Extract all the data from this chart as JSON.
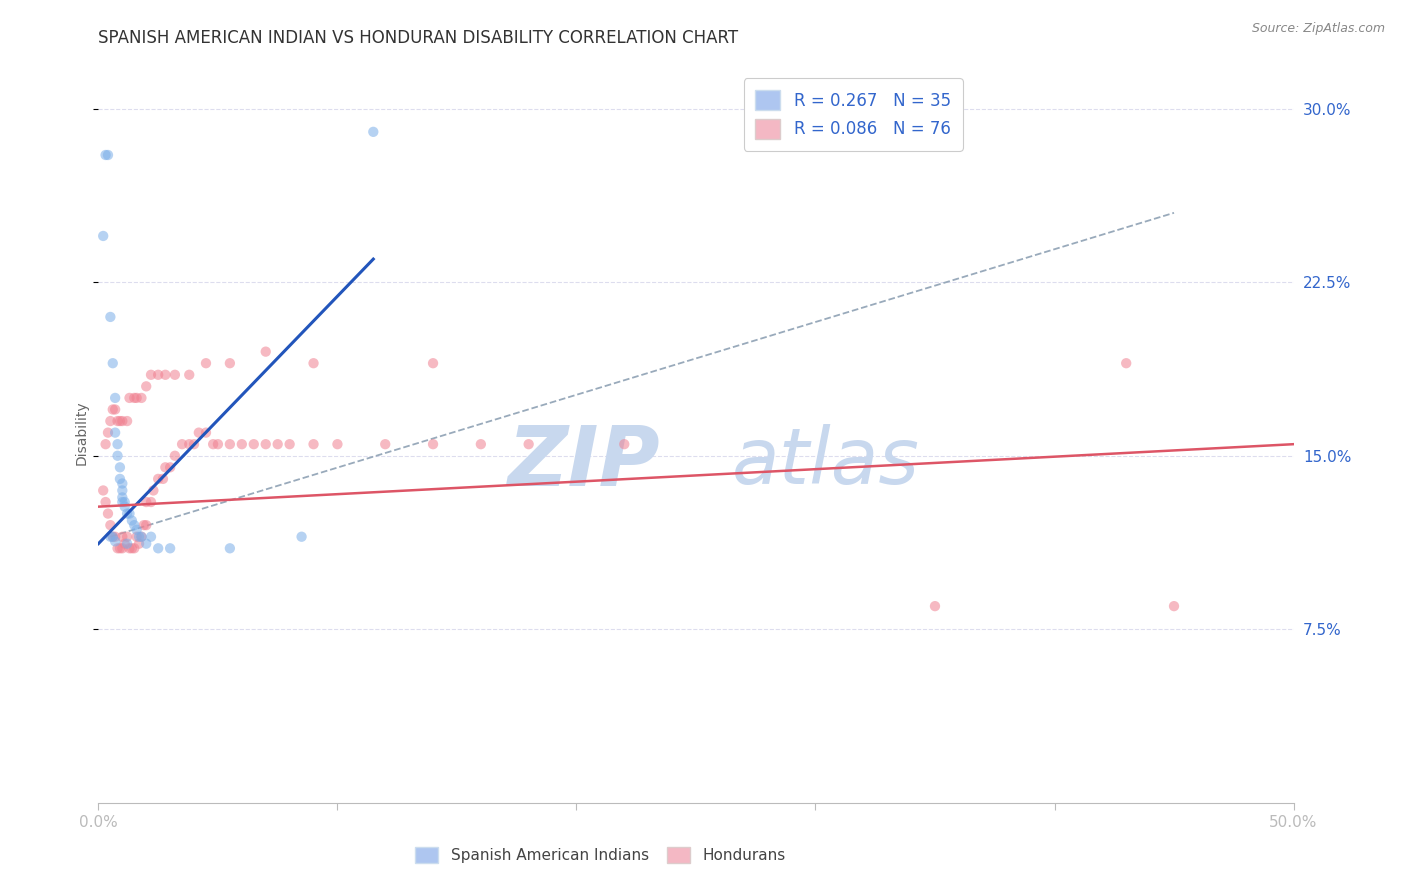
{
  "title": "SPANISH AMERICAN INDIAN VS HONDURAN DISABILITY CORRELATION CHART",
  "source": "Source: ZipAtlas.com",
  "ylabel": "Disability",
  "yticks": [
    0.075,
    0.15,
    0.225,
    0.3
  ],
  "ytick_labels": [
    "7.5%",
    "15.0%",
    "22.5%",
    "30.0%"
  ],
  "xlim": [
    0.0,
    0.5
  ],
  "ylim": [
    0.0,
    0.32
  ],
  "blue_scatter_x": [
    0.002,
    0.003,
    0.004,
    0.005,
    0.006,
    0.007,
    0.007,
    0.008,
    0.008,
    0.009,
    0.009,
    0.01,
    0.01,
    0.01,
    0.01,
    0.011,
    0.011,
    0.012,
    0.013,
    0.014,
    0.015,
    0.016,
    0.017,
    0.018,
    0.02,
    0.022,
    0.025,
    0.03,
    0.055,
    0.085,
    0.005,
    0.006,
    0.007,
    0.012,
    0.115
  ],
  "blue_scatter_y": [
    0.245,
    0.28,
    0.28,
    0.21,
    0.19,
    0.175,
    0.16,
    0.155,
    0.15,
    0.145,
    0.14,
    0.138,
    0.135,
    0.132,
    0.13,
    0.13,
    0.128,
    0.125,
    0.125,
    0.122,
    0.12,
    0.118,
    0.115,
    0.115,
    0.112,
    0.115,
    0.11,
    0.11,
    0.11,
    0.115,
    0.115,
    0.115,
    0.113,
    0.112,
    0.29
  ],
  "pink_scatter_x": [
    0.002,
    0.003,
    0.004,
    0.005,
    0.006,
    0.007,
    0.008,
    0.009,
    0.01,
    0.01,
    0.011,
    0.012,
    0.013,
    0.014,
    0.015,
    0.016,
    0.017,
    0.018,
    0.019,
    0.02,
    0.02,
    0.022,
    0.023,
    0.025,
    0.027,
    0.028,
    0.03,
    0.032,
    0.035,
    0.038,
    0.04,
    0.042,
    0.045,
    0.048,
    0.05,
    0.055,
    0.06,
    0.065,
    0.07,
    0.075,
    0.08,
    0.09,
    0.1,
    0.12,
    0.14,
    0.16,
    0.18,
    0.22,
    0.003,
    0.004,
    0.005,
    0.006,
    0.007,
    0.008,
    0.009,
    0.01,
    0.012,
    0.013,
    0.015,
    0.016,
    0.018,
    0.02,
    0.022,
    0.025,
    0.028,
    0.032,
    0.038,
    0.045,
    0.055,
    0.07,
    0.09,
    0.14,
    0.35,
    0.45,
    0.43
  ],
  "pink_scatter_y": [
    0.135,
    0.13,
    0.125,
    0.12,
    0.115,
    0.115,
    0.11,
    0.11,
    0.11,
    0.115,
    0.112,
    0.115,
    0.11,
    0.11,
    0.11,
    0.115,
    0.112,
    0.115,
    0.12,
    0.12,
    0.13,
    0.13,
    0.135,
    0.14,
    0.14,
    0.145,
    0.145,
    0.15,
    0.155,
    0.155,
    0.155,
    0.16,
    0.16,
    0.155,
    0.155,
    0.155,
    0.155,
    0.155,
    0.155,
    0.155,
    0.155,
    0.155,
    0.155,
    0.155,
    0.155,
    0.155,
    0.155,
    0.155,
    0.155,
    0.16,
    0.165,
    0.17,
    0.17,
    0.165,
    0.165,
    0.165,
    0.165,
    0.175,
    0.175,
    0.175,
    0.175,
    0.18,
    0.185,
    0.185,
    0.185,
    0.185,
    0.185,
    0.19,
    0.19,
    0.195,
    0.19,
    0.19,
    0.085,
    0.085,
    0.19
  ],
  "blue_line_x": [
    0.0,
    0.115
  ],
  "blue_line_y": [
    0.112,
    0.235
  ],
  "pink_line_x": [
    0.0,
    0.5
  ],
  "pink_line_y": [
    0.128,
    0.155
  ],
  "dashed_line_x": [
    0.005,
    0.45
  ],
  "dashed_line_y": [
    0.115,
    0.255
  ],
  "scatter_size": 55,
  "scatter_alpha": 0.55,
  "blue_color": "#7baee8",
  "pink_color": "#f08090",
  "blue_line_color": "#2255bb",
  "pink_line_color": "#dd5566",
  "dashed_line_color": "#99aabb",
  "watermark_zip": "ZIP",
  "watermark_atlas": "atlas",
  "watermark_color": "#c8d8ee",
  "watermark_fontsize": 60,
  "background_color": "#ffffff",
  "grid_color": "#ddddee"
}
